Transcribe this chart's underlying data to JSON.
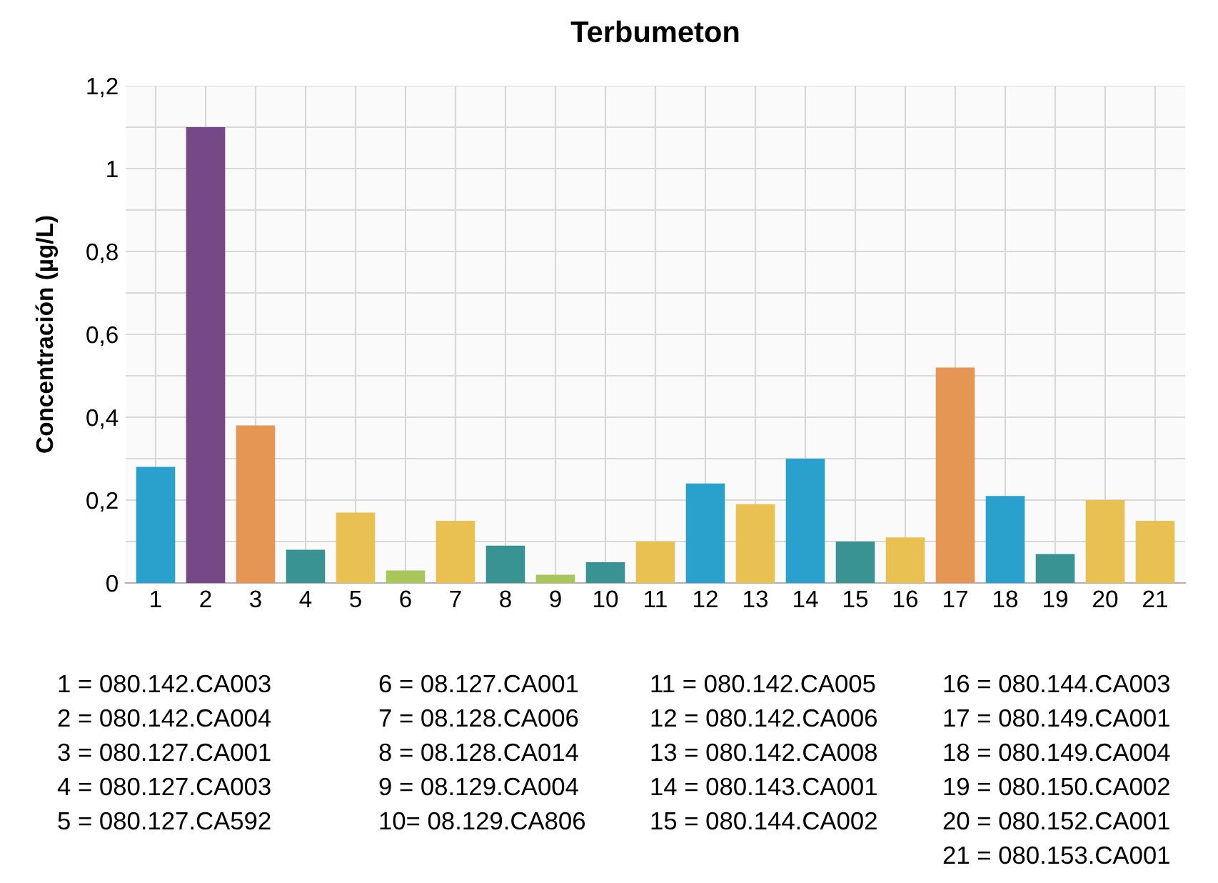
{
  "chart_data": {
    "type": "bar",
    "title": "Terbumeton",
    "ylabel": "Concentración (µg/L)",
    "categories": [
      "1",
      "2",
      "3",
      "4",
      "5",
      "6",
      "7",
      "8",
      "9",
      "10",
      "11",
      "12",
      "13",
      "14",
      "15",
      "16",
      "17",
      "18",
      "19",
      "20",
      "21"
    ],
    "values": [
      0.28,
      1.1,
      0.38,
      0.08,
      0.17,
      0.03,
      0.15,
      0.09,
      0.02,
      0.05,
      0.1,
      0.24,
      0.19,
      0.3,
      0.1,
      0.11,
      0.52,
      0.21,
      0.07,
      0.2,
      0.15
    ],
    "colors": [
      "#2aa0cc",
      "#774887",
      "#e59655",
      "#3a9393",
      "#e8c152",
      "#a8c65a",
      "#e8c152",
      "#3a9393",
      "#a8c65a",
      "#3a9393",
      "#e8c152",
      "#2aa0cc",
      "#e8c152",
      "#2aa0cc",
      "#3a9393",
      "#e8c152",
      "#e59655",
      "#2aa0cc",
      "#3a9393",
      "#e8c152",
      "#e8c152"
    ],
    "ylim": [
      0,
      1.2
    ],
    "yticks": [
      {
        "value": 0,
        "label": "0"
      },
      {
        "value": 0.1,
        "label": null
      },
      {
        "value": 0.2,
        "label": "0,2"
      },
      {
        "value": 0.3,
        "label": null
      },
      {
        "value": 0.4,
        "label": "0,4"
      },
      {
        "value": 0.5,
        "label": null
      },
      {
        "value": 0.6,
        "label": "0,6"
      },
      {
        "value": 0.7,
        "label": null
      },
      {
        "value": 0.8,
        "label": "0,8"
      },
      {
        "value": 0.9,
        "label": null
      },
      {
        "value": 1,
        "label": "1"
      },
      {
        "value": 1.1,
        "label": null
      },
      {
        "value": 1.2,
        "label": "1,2"
      }
    ],
    "grid": true,
    "annotations": [
      "1 = 080.142.CA003",
      "2 = 080.142.CA004",
      "3 = 080.127.CA001",
      "4 = 080.127.CA003",
      "5 = 080.127.CA592",
      "6 = 08.127.CA001",
      "7 = 08.128.CA006",
      "8 = 08.128.CA014",
      "9 = 08.129.CA004",
      "10= 08.129.CA806",
      "11 = 080.142.CA005",
      "12 = 080.142.CA006",
      "13 = 080.142.CA008",
      "14 = 080.143.CA001",
      "15 = 080.144.CA002",
      "16 = 080.144.CA003",
      "17 = 080.149.CA001",
      "18 = 080.149.CA004",
      "19 = 080.150.CA002",
      "20 = 080.152.CA001",
      "21 = 080.153.CA001"
    ]
  }
}
